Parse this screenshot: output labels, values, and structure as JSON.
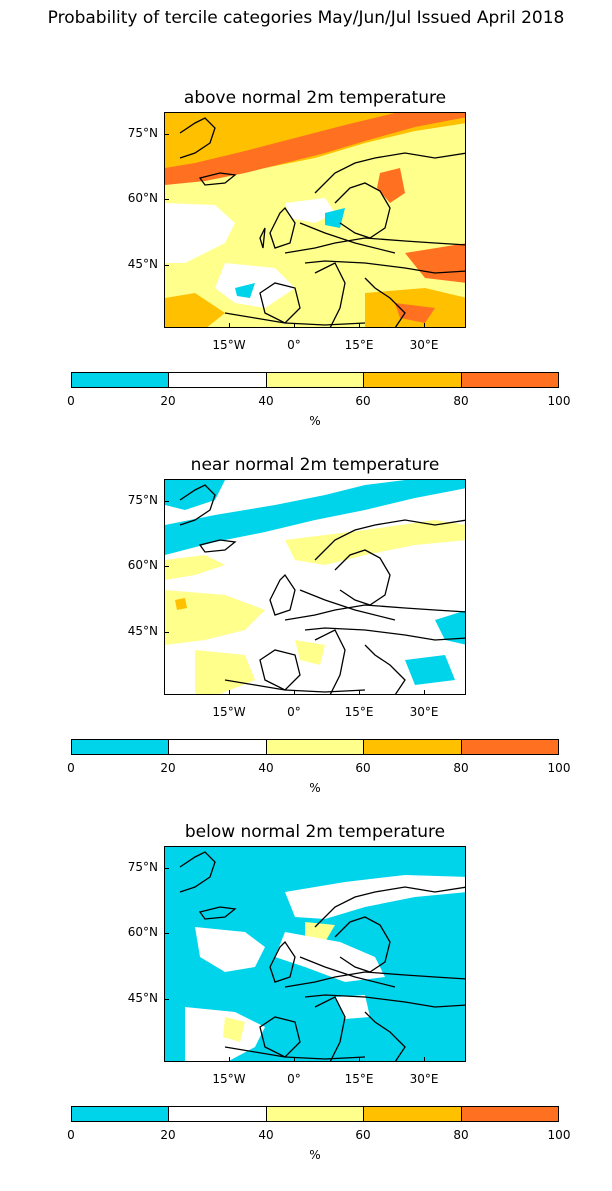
{
  "title": "Probability of tercile categories May/Jun/Jul Issued April 2018",
  "colors": {
    "cat_0_20": "#00d4ea",
    "cat_20_40": "#ffffff",
    "cat_40_60": "#ffff8c",
    "cat_60_80": "#ffc000",
    "cat_80_100": "#ff7020",
    "coast": "#000000"
  },
  "axes": {
    "lat_labels": [
      "75°N",
      "60°N",
      "45°N"
    ],
    "lon_labels": [
      "15°W",
      "0°",
      "15°E",
      "30°E"
    ]
  },
  "colorbar": {
    "ticks": [
      "0",
      "20",
      "40",
      "60",
      "80",
      "100"
    ],
    "unit": "%"
  },
  "panels": [
    {
      "title": "above normal 2m temperature",
      "background": "cat_40_60"
    },
    {
      "title": "near normal 2m temperature",
      "background": "cat_20_40"
    },
    {
      "title": "below normal 2m temperature",
      "background": "cat_0_20"
    }
  ]
}
